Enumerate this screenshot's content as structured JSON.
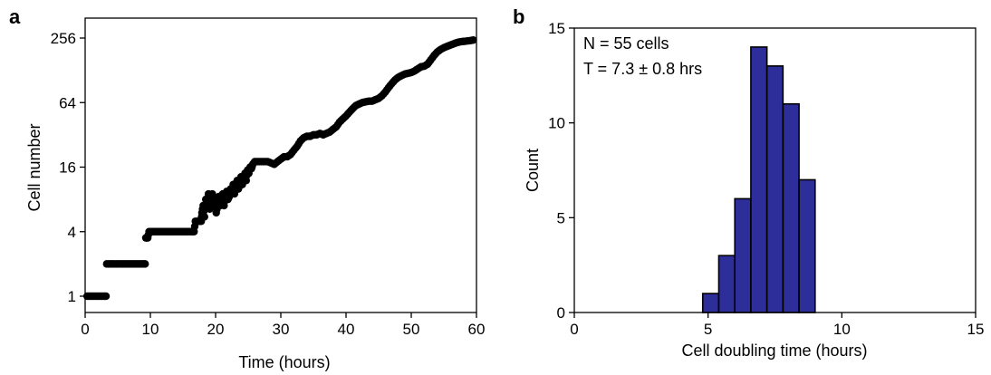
{
  "chart_data": [
    {
      "type": "scatter",
      "panel_label": "a",
      "xlabel": "Time (hours)",
      "ylabel": "Cell number",
      "xlim": [
        0,
        60
      ],
      "ylim": [
        1,
        256
      ],
      "y_scale": "log2",
      "x_ticks": [
        0,
        10,
        20,
        30,
        40,
        50,
        60
      ],
      "y_ticks": [
        1,
        4,
        16,
        64,
        256
      ],
      "y_tick_labels": [
        "1",
        "4",
        "16",
        "64",
        "256"
      ],
      "point_color": "#000000",
      "points": [
        [
          0.3,
          1
        ],
        [
          0.8,
          1
        ],
        [
          1.3,
          1
        ],
        [
          1.8,
          1
        ],
        [
          2.3,
          1
        ],
        [
          2.8,
          1
        ],
        [
          3.2,
          1
        ],
        [
          3.3,
          2
        ],
        [
          3.8,
          2
        ],
        [
          4.3,
          2
        ],
        [
          4.8,
          2
        ],
        [
          5.3,
          2
        ],
        [
          5.8,
          2
        ],
        [
          6.3,
          2
        ],
        [
          6.8,
          2
        ],
        [
          7.3,
          2
        ],
        [
          7.8,
          2
        ],
        [
          8.3,
          2
        ],
        [
          8.8,
          2
        ],
        [
          9.2,
          2
        ],
        [
          9.3,
          3.5
        ],
        [
          9.6,
          3.5
        ],
        [
          9.8,
          4
        ],
        [
          10.3,
          4
        ],
        [
          10.8,
          4
        ],
        [
          11.3,
          4
        ],
        [
          11.8,
          4
        ],
        [
          12.3,
          4
        ],
        [
          12.8,
          4
        ],
        [
          13.3,
          4
        ],
        [
          13.8,
          4
        ],
        [
          14.3,
          4
        ],
        [
          14.8,
          4
        ],
        [
          15.3,
          4
        ],
        [
          15.8,
          4
        ],
        [
          16.3,
          4
        ],
        [
          16.7,
          4
        ],
        [
          16.9,
          5
        ],
        [
          17.4,
          5
        ],
        [
          17.8,
          5
        ],
        [
          17.9,
          6
        ],
        [
          18.1,
          7
        ],
        [
          18.3,
          5.5
        ],
        [
          18.5,
          8
        ],
        [
          18.7,
          7
        ],
        [
          18.9,
          9
        ],
        [
          19.1,
          6.5
        ],
        [
          19.3,
          8.5
        ],
        [
          19.5,
          9
        ],
        [
          19.7,
          7.5
        ],
        [
          19.9,
          8
        ],
        [
          20.1,
          6
        ],
        [
          20.3,
          7
        ],
        [
          20.5,
          8.5
        ],
        [
          20.7,
          7
        ],
        [
          20.9,
          8
        ],
        [
          21.1,
          9
        ],
        [
          21.3,
          7
        ],
        [
          21.5,
          8.5
        ],
        [
          21.7,
          9.5
        ],
        [
          21.9,
          8
        ],
        [
          22.1,
          8.5
        ],
        [
          22.3,
          10
        ],
        [
          22.5,
          9
        ],
        [
          22.7,
          11
        ],
        [
          22.9,
          9
        ],
        [
          23.1,
          10.5
        ],
        [
          23.3,
          12
        ],
        [
          23.5,
          10
        ],
        [
          23.7,
          11
        ],
        [
          23.9,
          13
        ],
        [
          24.1,
          11
        ],
        [
          24.3,
          12.5
        ],
        [
          24.5,
          14
        ],
        [
          24.7,
          12
        ],
        [
          24.9,
          15
        ],
        [
          25.1,
          14
        ],
        [
          25.3,
          16
        ],
        [
          25.5,
          15.5
        ],
        [
          25.7,
          17
        ],
        [
          26,
          18
        ],
        [
          26.5,
          18
        ],
        [
          27,
          18
        ],
        [
          27.5,
          18
        ],
        [
          28,
          18
        ],
        [
          28.5,
          17.5
        ],
        [
          29,
          17
        ],
        [
          29.5,
          18
        ],
        [
          30,
          19
        ],
        [
          30.5,
          20
        ],
        [
          31,
          20
        ],
        [
          31.5,
          21
        ],
        [
          32,
          23
        ],
        [
          32.5,
          25
        ],
        [
          33,
          28
        ],
        [
          33.5,
          30
        ],
        [
          34,
          31
        ],
        [
          34.5,
          31
        ],
        [
          35,
          32
        ],
        [
          35.5,
          32
        ],
        [
          36,
          33
        ],
        [
          36.5,
          32
        ],
        [
          37,
          33
        ],
        [
          37.5,
          34
        ],
        [
          38,
          36
        ],
        [
          38.5,
          38
        ],
        [
          39,
          42
        ],
        [
          39.5,
          45
        ],
        [
          40,
          48
        ],
        [
          40.5,
          52
        ],
        [
          41,
          56
        ],
        [
          41.5,
          60
        ],
        [
          42,
          62
        ],
        [
          42.5,
          64
        ],
        [
          43,
          65
        ],
        [
          43.5,
          66
        ],
        [
          44,
          66
        ],
        [
          44.5,
          68
        ],
        [
          45,
          70
        ],
        [
          45.5,
          74
        ],
        [
          46,
          80
        ],
        [
          46.5,
          88
        ],
        [
          47,
          96
        ],
        [
          47.5,
          104
        ],
        [
          48,
          110
        ],
        [
          48.5,
          114
        ],
        [
          49,
          118
        ],
        [
          49.5,
          120
        ],
        [
          50,
          122
        ],
        [
          50.5,
          126
        ],
        [
          51,
          132
        ],
        [
          51.5,
          138
        ],
        [
          52,
          140
        ],
        [
          52.5,
          146
        ],
        [
          53,
          160
        ],
        [
          53.5,
          176
        ],
        [
          54,
          190
        ],
        [
          54.5,
          200
        ],
        [
          55,
          208
        ],
        [
          55.5,
          214
        ],
        [
          56,
          220
        ],
        [
          56.5,
          226
        ],
        [
          57,
          232
        ],
        [
          57.5,
          236
        ],
        [
          58,
          238
        ],
        [
          58.5,
          240
        ],
        [
          59,
          242
        ],
        [
          59.5,
          245
        ]
      ]
    },
    {
      "type": "bar",
      "panel_label": "b",
      "xlabel": "Cell doubling time (hours)",
      "ylabel": "Count",
      "xlim": [
        0,
        15
      ],
      "ylim": [
        0,
        15
      ],
      "x_ticks": [
        0,
        5,
        10,
        15
      ],
      "y_ticks": [
        0,
        5,
        10,
        15
      ],
      "bin_width": 0.6,
      "bins": [
        {
          "x0": 4.8,
          "count": 1
        },
        {
          "x0": 5.4,
          "count": 3
        },
        {
          "x0": 6.0,
          "count": 6
        },
        {
          "x0": 6.6,
          "count": 14
        },
        {
          "x0": 7.2,
          "count": 13
        },
        {
          "x0": 7.8,
          "count": 11
        },
        {
          "x0": 8.4,
          "count": 7
        }
      ],
      "bar_color": "#2e2e9a",
      "annotations": [
        "N = 55 cells",
        "T = 7.3 ± 0.8 hrs"
      ]
    }
  ]
}
